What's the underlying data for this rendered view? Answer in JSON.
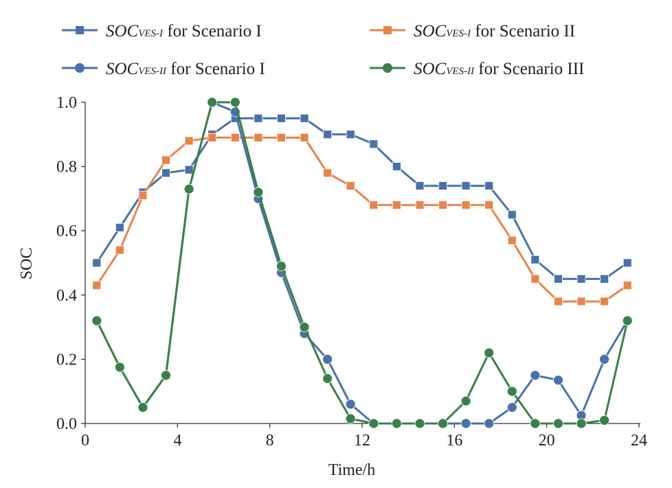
{
  "chart_data": {
    "type": "line",
    "xlabel": "Time/h",
    "ylabel": "SOC",
    "xlim": [
      0,
      24
    ],
    "ylim": [
      0,
      1.0
    ],
    "x_ticks": [
      "0",
      "4",
      "8",
      "12",
      "16",
      "20",
      "24"
    ],
    "y_ticks": [
      "0.0",
      "0.2",
      "0.4",
      "0.6",
      "0.8",
      "1.0"
    ],
    "grid": false,
    "legend_position": "top",
    "x": [
      0.5,
      1.5,
      2.5,
      3.5,
      4.5,
      5.5,
      6.5,
      7.5,
      8.5,
      9.5,
      10.5,
      11.5,
      12.5,
      13.5,
      14.5,
      15.5,
      16.5,
      17.5,
      18.5,
      19.5,
      20.5,
      21.5,
      22.5,
      23.5
    ],
    "series": [
      {
        "legend_main": "SOC",
        "legend_sub": "VES-I",
        "legend_suffix": " for Scenario I",
        "color": "#4a72a8",
        "marker": "square",
        "values": [
          0.5,
          0.61,
          0.72,
          0.78,
          0.79,
          0.9,
          0.95,
          0.95,
          0.95,
          0.95,
          0.9,
          0.9,
          0.87,
          0.8,
          0.74,
          0.74,
          0.74,
          0.74,
          0.65,
          0.51,
          0.45,
          0.45,
          0.45,
          0.5
        ]
      },
      {
        "legend_main": "SOC",
        "legend_sub": "VES-I",
        "legend_suffix": " for Scenario II",
        "color": "#e8844a",
        "marker": "square",
        "values": [
          0.43,
          0.54,
          0.71,
          0.82,
          0.88,
          0.89,
          0.89,
          0.89,
          0.89,
          0.89,
          0.78,
          0.74,
          0.68,
          0.68,
          0.68,
          0.68,
          0.68,
          0.68,
          0.57,
          0.45,
          0.38,
          0.38,
          0.38,
          0.43
        ]
      },
      {
        "legend_main": "SOC",
        "legend_sub": "VES-II",
        "legend_suffix": " for Scenario I",
        "color": "#4a72a8",
        "marker": "circle",
        "values": [
          0.32,
          0.175,
          0.05,
          0.15,
          0.73,
          1.0,
          0.97,
          0.7,
          0.47,
          0.28,
          0.2,
          0.06,
          0.0,
          0.0,
          0.0,
          0.0,
          0.0,
          0.0,
          0.05,
          0.15,
          0.135,
          0.025,
          0.2,
          0.32
        ]
      },
      {
        "legend_main": "SOC",
        "legend_sub": "VES-II",
        "legend_suffix": " for Scenario III",
        "color": "#3a8048",
        "marker": "circle",
        "values": [
          0.32,
          0.175,
          0.05,
          0.15,
          0.73,
          1.0,
          1.0,
          0.72,
          0.49,
          0.3,
          0.14,
          0.015,
          0.0,
          0.0,
          0.0,
          0.0,
          0.07,
          0.22,
          0.1,
          0.0,
          0.0,
          0.0,
          0.01,
          0.32
        ]
      }
    ]
  }
}
